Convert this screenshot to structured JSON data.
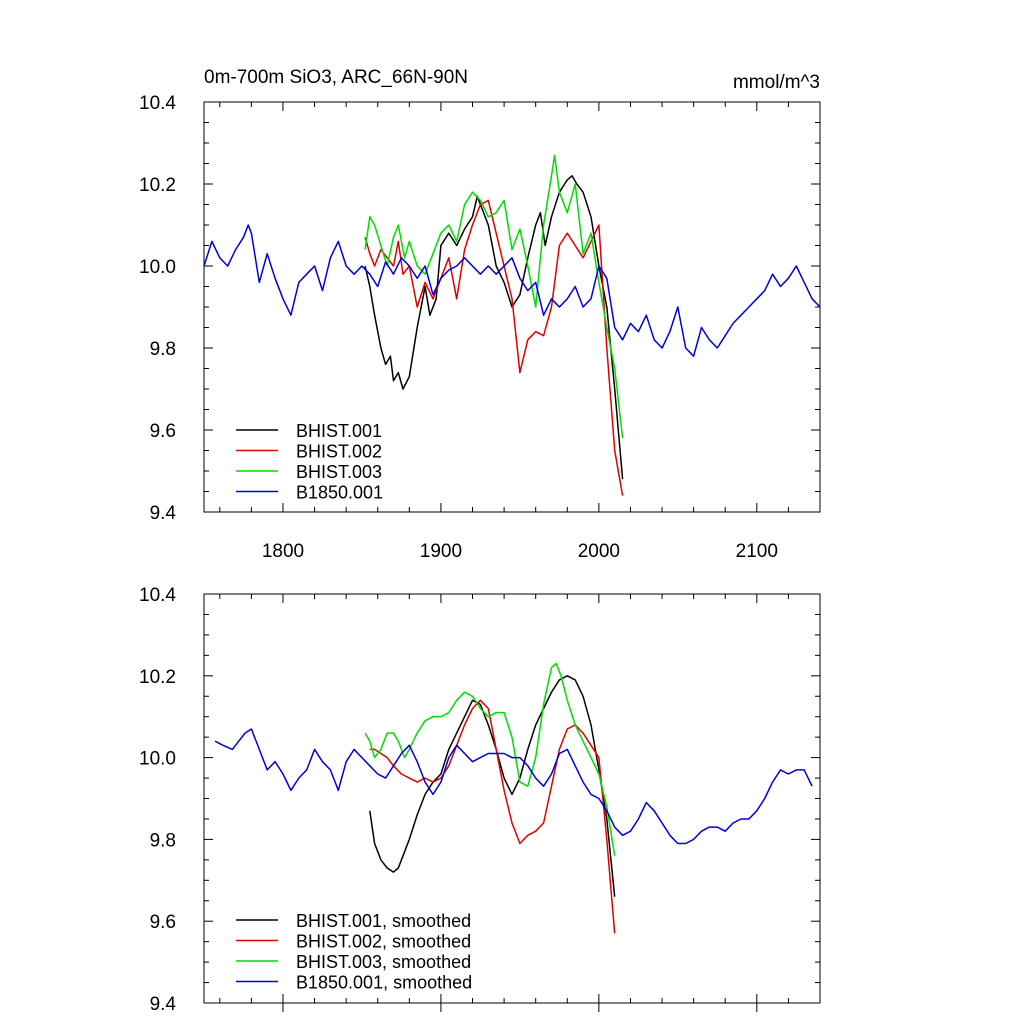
{
  "chart_data": [
    {
      "type": "line",
      "title": "0m-700m SiO3, ARC_66N-90N",
      "units": "mmol/m^3",
      "xlabel": "",
      "ylabel": "",
      "xlim": [
        1750,
        2140
      ],
      "ylim": [
        9.4,
        10.4
      ],
      "xticks": [
        1800,
        1900,
        2000,
        2100
      ],
      "yticks": [
        9.4,
        9.6,
        9.8,
        10.0,
        10.2,
        10.4
      ],
      "xtick_labels": [
        "1800",
        "1900",
        "2000",
        "2100"
      ],
      "ytick_labels": [
        "9.4",
        "9.6",
        "9.8",
        "10.0",
        "10.2",
        "10.4"
      ],
      "legend_position": "bottom-left",
      "series": [
        {
          "name": "BHIST.001",
          "color": "#000000",
          "x": [
            1852,
            1855,
            1858,
            1862,
            1865,
            1868,
            1870,
            1873,
            1876,
            1880,
            1885,
            1890,
            1893,
            1897,
            1900,
            1905,
            1910,
            1915,
            1920,
            1923,
            1926,
            1930,
            1935,
            1940,
            1945,
            1950,
            1955,
            1960,
            1963,
            1966,
            1970,
            1975,
            1980,
            1983,
            1986,
            1990,
            1995,
            2000,
            2005,
            2010,
            2015
          ],
          "y": [
            10.0,
            9.95,
            9.88,
            9.8,
            9.76,
            9.78,
            9.72,
            9.74,
            9.7,
            9.73,
            9.85,
            9.95,
            9.88,
            9.92,
            10.05,
            10.08,
            10.05,
            10.09,
            10.12,
            10.17,
            10.14,
            10.1,
            10.0,
            9.96,
            9.9,
            9.93,
            10.02,
            10.1,
            10.13,
            10.05,
            10.12,
            10.18,
            10.21,
            10.22,
            10.2,
            10.18,
            10.12,
            10.0,
            9.9,
            9.7,
            9.48
          ]
        },
        {
          "name": "BHIST.002",
          "color": "#e00000",
          "x": [
            1852,
            1855,
            1858,
            1862,
            1866,
            1870,
            1873,
            1876,
            1880,
            1885,
            1890,
            1895,
            1900,
            1905,
            1910,
            1915,
            1920,
            1925,
            1930,
            1935,
            1940,
            1945,
            1950,
            1955,
            1960,
            1965,
            1970,
            1975,
            1980,
            1985,
            1990,
            1995,
            2000,
            2005,
            2010,
            2015
          ],
          "y": [
            10.07,
            10.03,
            10.0,
            10.04,
            10.02,
            10.0,
            10.06,
            9.98,
            10.0,
            9.9,
            9.96,
            9.92,
            9.97,
            10.02,
            9.92,
            10.04,
            10.1,
            10.15,
            10.16,
            10.08,
            10.0,
            9.92,
            9.74,
            9.82,
            9.84,
            9.83,
            9.9,
            10.05,
            10.08,
            10.05,
            10.02,
            10.06,
            10.1,
            9.8,
            9.55,
            9.44
          ]
        },
        {
          "name": "BHIST.003",
          "color": "#00dd00",
          "x": [
            1852,
            1855,
            1858,
            1862,
            1866,
            1870,
            1873,
            1877,
            1880,
            1885,
            1890,
            1895,
            1900,
            1905,
            1910,
            1915,
            1920,
            1925,
            1930,
            1935,
            1940,
            1945,
            1950,
            1955,
            1960,
            1965,
            1970,
            1972,
            1975,
            1980,
            1985,
            1990,
            1995,
            2000,
            2005,
            2010,
            2015
          ],
          "y": [
            10.04,
            10.12,
            10.1,
            10.05,
            10.0,
            10.07,
            10.1,
            10.02,
            10.06,
            10.0,
            9.98,
            10.03,
            10.08,
            10.1,
            10.06,
            10.15,
            10.18,
            10.16,
            10.12,
            10.13,
            10.16,
            10.04,
            10.09,
            10.0,
            9.9,
            10.1,
            10.22,
            10.27,
            10.18,
            10.13,
            10.2,
            10.03,
            10.08,
            9.96,
            9.85,
            9.75,
            9.58
          ]
        },
        {
          "name": "B1850.001",
          "color": "#0000dd",
          "x": [
            1750,
            1755,
            1760,
            1765,
            1770,
            1775,
            1778,
            1780,
            1785,
            1790,
            1795,
            1800,
            1805,
            1810,
            1815,
            1820,
            1825,
            1830,
            1835,
            1840,
            1845,
            1850,
            1855,
            1860,
            1865,
            1870,
            1875,
            1880,
            1885,
            1890,
            1895,
            1900,
            1905,
            1910,
            1915,
            1920,
            1925,
            1930,
            1935,
            1940,
            1945,
            1950,
            1955,
            1960,
            1965,
            1970,
            1975,
            1980,
            1985,
            1990,
            1995,
            2000,
            2005,
            2010,
            2015,
            2020,
            2025,
            2030,
            2035,
            2040,
            2045,
            2050,
            2055,
            2060,
            2065,
            2070,
            2075,
            2080,
            2085,
            2090,
            2095,
            2100,
            2105,
            2110,
            2115,
            2120,
            2125,
            2130,
            2135,
            2140
          ],
          "y": [
            10.0,
            10.06,
            10.02,
            10.0,
            10.04,
            10.07,
            10.1,
            10.08,
            9.96,
            10.03,
            9.97,
            9.92,
            9.88,
            9.96,
            9.98,
            10.0,
            9.94,
            10.02,
            10.06,
            10.0,
            9.98,
            10.0,
            9.98,
            9.95,
            10.01,
            9.98,
            10.02,
            10.0,
            9.97,
            10.0,
            9.93,
            9.97,
            9.99,
            10.0,
            10.02,
            10.0,
            9.98,
            10.0,
            9.98,
            10.0,
            10.02,
            9.97,
            9.94,
            9.96,
            9.88,
            9.92,
            9.9,
            9.92,
            9.95,
            9.9,
            9.92,
            10.0,
            9.97,
            9.85,
            9.82,
            9.86,
            9.84,
            9.88,
            9.82,
            9.8,
            9.84,
            9.9,
            9.8,
            9.78,
            9.85,
            9.82,
            9.8,
            9.83,
            9.86,
            9.88,
            9.9,
            9.92,
            9.94,
            9.98,
            9.95,
            9.97,
            10.0,
            9.96,
            9.92,
            9.9
          ]
        }
      ]
    },
    {
      "type": "line",
      "title": "",
      "xlim": [
        1750,
        2140
      ],
      "ylim": [
        9.4,
        10.4
      ],
      "xticks": [
        1800,
        1900,
        2000,
        2100
      ],
      "yticks": [
        9.4,
        9.6,
        9.8,
        10.0,
        10.2,
        10.4
      ],
      "ytick_labels": [
        "9.4",
        "9.6",
        "9.8",
        "10.0",
        "10.2",
        "10.4"
      ],
      "legend_position": "bottom-left",
      "series": [
        {
          "name": "BHIST.001, smoothed",
          "color": "#000000",
          "x": [
            1855,
            1858,
            1862,
            1866,
            1870,
            1873,
            1877,
            1880,
            1885,
            1890,
            1895,
            1900,
            1905,
            1910,
            1915,
            1920,
            1925,
            1930,
            1935,
            1940,
            1945,
            1950,
            1955,
            1960,
            1965,
            1970,
            1975,
            1980,
            1985,
            1990,
            1995,
            2000,
            2005,
            2010
          ],
          "y": [
            9.87,
            9.79,
            9.75,
            9.73,
            9.72,
            9.73,
            9.77,
            9.8,
            9.86,
            9.91,
            9.94,
            9.96,
            10.02,
            10.06,
            10.1,
            10.14,
            10.13,
            10.08,
            10.02,
            9.95,
            9.91,
            9.95,
            10.02,
            10.08,
            10.12,
            10.16,
            10.19,
            10.2,
            10.19,
            10.15,
            10.08,
            9.97,
            9.85,
            9.66
          ]
        },
        {
          "name": "BHIST.002, smoothed",
          "color": "#e00000",
          "x": [
            1855,
            1858,
            1862,
            1866,
            1870,
            1875,
            1880,
            1885,
            1890,
            1895,
            1900,
            1905,
            1910,
            1915,
            1920,
            1925,
            1930,
            1935,
            1940,
            1945,
            1950,
            1955,
            1960,
            1965,
            1970,
            1975,
            1980,
            1985,
            1990,
            1995,
            2000,
            2005,
            2010
          ],
          "y": [
            10.02,
            10.02,
            10.01,
            10.0,
            9.98,
            9.96,
            9.95,
            9.94,
            9.95,
            9.94,
            9.95,
            9.98,
            10.03,
            10.08,
            10.12,
            10.14,
            10.12,
            10.02,
            9.92,
            9.84,
            9.79,
            9.81,
            9.82,
            9.84,
            9.93,
            10.02,
            10.07,
            10.08,
            10.06,
            10.03,
            10.0,
            9.8,
            9.57
          ]
        },
        {
          "name": "BHIST.003, smoothed",
          "color": "#00dd00",
          "x": [
            1852,
            1855,
            1858,
            1862,
            1866,
            1870,
            1873,
            1877,
            1880,
            1885,
            1890,
            1895,
            1900,
            1905,
            1910,
            1915,
            1920,
            1925,
            1930,
            1935,
            1940,
            1945,
            1950,
            1955,
            1960,
            1965,
            1970,
            1973,
            1976,
            1980,
            1985,
            1990,
            1995,
            2000,
            2005,
            2010
          ],
          "y": [
            10.06,
            10.04,
            10.0,
            10.02,
            10.06,
            10.06,
            10.04,
            10.0,
            10.02,
            10.06,
            10.09,
            10.1,
            10.1,
            10.11,
            10.14,
            10.16,
            10.15,
            10.12,
            10.1,
            10.11,
            10.11,
            10.05,
            9.94,
            9.93,
            10.0,
            10.13,
            10.22,
            10.23,
            10.2,
            10.14,
            10.08,
            10.04,
            10.0,
            9.96,
            9.88,
            9.76
          ]
        },
        {
          "name": "B1850.001, smoothed",
          "color": "#0000dd",
          "x": [
            1757,
            1762,
            1768,
            1772,
            1776,
            1780,
            1785,
            1790,
            1795,
            1800,
            1805,
            1810,
            1815,
            1820,
            1825,
            1830,
            1835,
            1840,
            1845,
            1850,
            1855,
            1860,
            1865,
            1870,
            1875,
            1880,
            1885,
            1890,
            1895,
            1900,
            1905,
            1910,
            1915,
            1920,
            1925,
            1930,
            1935,
            1940,
            1945,
            1950,
            1955,
            1960,
            1965,
            1970,
            1975,
            1980,
            1985,
            1990,
            1995,
            2000,
            2005,
            2010,
            2015,
            2020,
            2025,
            2030,
            2035,
            2040,
            2045,
            2050,
            2055,
            2060,
            2065,
            2070,
            2075,
            2080,
            2085,
            2090,
            2095,
            2100,
            2105,
            2110,
            2115,
            2120,
            2125,
            2130,
            2135
          ],
          "y": [
            10.04,
            10.03,
            10.02,
            10.04,
            10.06,
            10.07,
            10.02,
            9.97,
            9.99,
            9.96,
            9.92,
            9.95,
            9.97,
            10.02,
            9.99,
            9.97,
            9.92,
            9.99,
            10.02,
            10.0,
            9.98,
            9.96,
            9.95,
            9.98,
            10.01,
            10.03,
            9.99,
            9.94,
            9.91,
            9.94,
            10.0,
            10.03,
            10.01,
            9.99,
            10.0,
            10.01,
            10.01,
            10.01,
            10.0,
            10.0,
            9.98,
            9.95,
            9.93,
            9.96,
            10.01,
            10.02,
            9.98,
            9.94,
            9.91,
            9.9,
            9.87,
            9.83,
            9.81,
            9.82,
            9.85,
            9.89,
            9.87,
            9.84,
            9.81,
            9.79,
            9.79,
            9.8,
            9.82,
            9.83,
            9.83,
            9.82,
            9.84,
            9.85,
            9.85,
            9.87,
            9.9,
            9.94,
            9.97,
            9.96,
            9.97,
            9.97,
            9.93
          ]
        }
      ]
    }
  ]
}
